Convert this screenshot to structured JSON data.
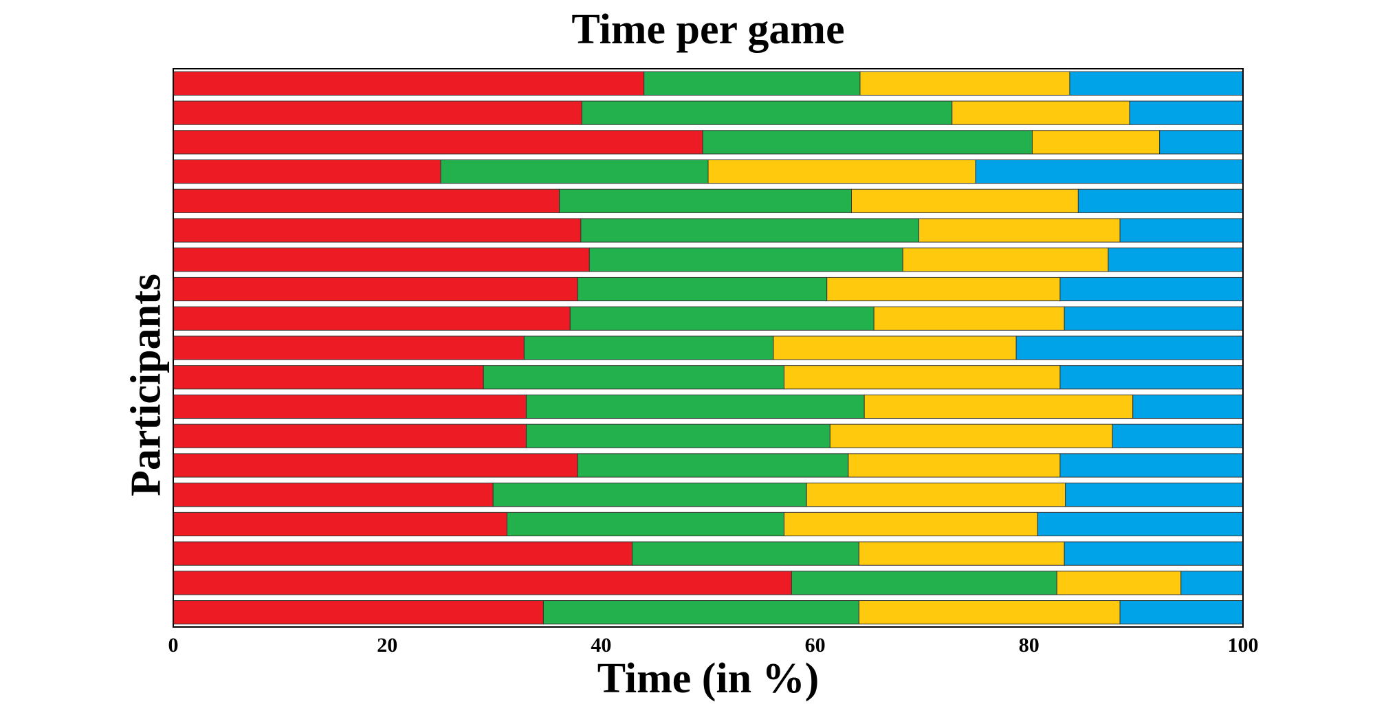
{
  "chart_data": {
    "type": "bar",
    "orientation": "horizontal",
    "stacked": true,
    "title": "Time per game",
    "xlabel": "Time (in %)",
    "ylabel": "Participants",
    "xlim": [
      0,
      100
    ],
    "xticks": [
      "0",
      "20",
      "40",
      "60",
      "80",
      "100"
    ],
    "grid": false,
    "colors": [
      "#ed1c24",
      "#22b14c",
      "#ffc90e",
      "#00a2e8"
    ],
    "series": [
      {
        "values": [
          44,
          38.2,
          49.5,
          25,
          36.1,
          38.1,
          38.9,
          37.8,
          37.1,
          32.8,
          29,
          33,
          33,
          37.8,
          29.9,
          31.2,
          42.9,
          57.8,
          34.6
        ]
      },
      {
        "values": [
          20.2,
          34.6,
          30.8,
          25,
          27.3,
          31.6,
          29.3,
          23.3,
          28.4,
          23.3,
          28.1,
          31.6,
          28.4,
          25.3,
          29.3,
          25.9,
          21.2,
          24.8,
          29.5
        ]
      },
      {
        "values": [
          19.6,
          16.6,
          11.9,
          25,
          21.2,
          18.8,
          19.2,
          21.8,
          17.8,
          22.7,
          25.8,
          25.1,
          26.4,
          19.8,
          24.2,
          23.7,
          19.2,
          11.6,
          24.4
        ]
      },
      {
        "values": [
          16.2,
          10.6,
          7.8,
          25,
          15.4,
          11.5,
          12.6,
          17.1,
          16.7,
          21.2,
          17.1,
          10.3,
          12.2,
          17.1,
          16.6,
          19.2,
          16.7,
          5.8,
          11.5
        ]
      }
    ]
  }
}
